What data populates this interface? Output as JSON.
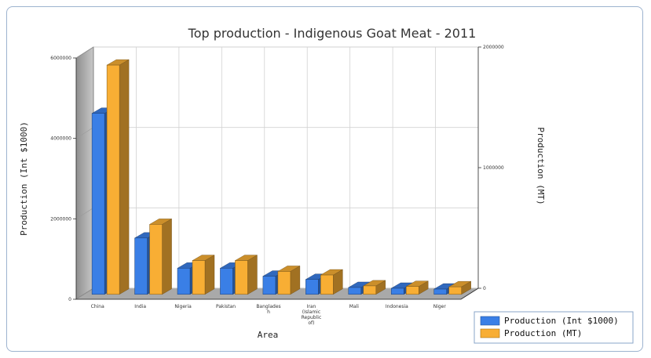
{
  "chart_data": {
    "type": "bar",
    "title": "Top production - Indigenous Goat Meat - 2011",
    "xlabel": "Area",
    "ylabel": "Production (Int $1000)",
    "y2label": "Production (MT)",
    "categories": [
      "China",
      "India",
      "Nigeria",
      "Pakistan",
      "Banglades h",
      "Iran (Islamic Republic of)",
      "Mali",
      "Indonesia",
      "Niger"
    ],
    "category_lines": [
      [
        "China"
      ],
      [
        "India"
      ],
      [
        "Nigeria"
      ],
      [
        "Pakistan"
      ],
      [
        "Banglades",
        "h"
      ],
      [
        "Iran",
        "(Islamic",
        "Republic",
        "of)"
      ],
      [
        "Mali"
      ],
      [
        "Indonesia"
      ],
      [
        "Niger"
      ]
    ],
    "series": [
      {
        "name": "Production (Int $1000)",
        "axis": "left",
        "color": "#3a7fe6",
        "values": [
          4500000,
          1400000,
          650000,
          650000,
          450000,
          370000,
          170000,
          150000,
          130000
        ]
      },
      {
        "name": "Production (MT)",
        "axis": "right",
        "color": "#f8ae34",
        "values": [
          1900000,
          580000,
          280000,
          280000,
          190000,
          160000,
          70000,
          65000,
          62000
        ]
      }
    ],
    "y_ticks": [
      "0",
      "2000000",
      "4000000",
      "6000000"
    ],
    "y2_ticks": [
      "0",
      "1000000",
      "2000000"
    ],
    "ylim": [
      0,
      6000000
    ],
    "y2lim": [
      0,
      2000000
    ],
    "grid": true,
    "legend_position": "bottom-right"
  }
}
